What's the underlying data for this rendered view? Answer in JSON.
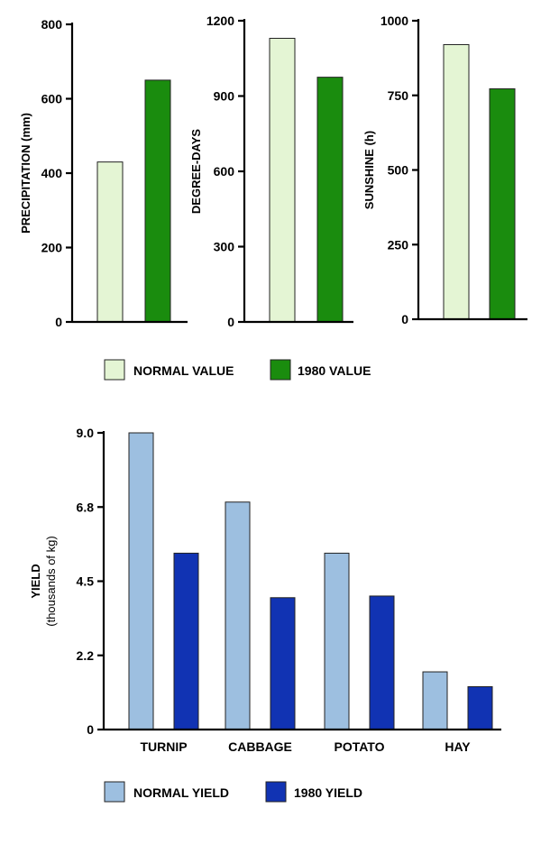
{
  "chart_data": [
    {
      "type": "bar",
      "title": "",
      "ylabel": "PRECIPITATION (mm)",
      "ylim": [
        0,
        800
      ],
      "yticks": [
        "0",
        "200",
        "400",
        "600",
        "800"
      ],
      "series": [
        {
          "name": "NORMAL VALUE",
          "values": [
            430
          ]
        },
        {
          "name": "1980 VALUE",
          "values": [
            650
          ]
        }
      ]
    },
    {
      "type": "bar",
      "title": "",
      "ylabel": "DEGREE-DAYS",
      "ylim": [
        0,
        1200
      ],
      "yticks": [
        "0",
        "300",
        "600",
        "900",
        "1200"
      ],
      "series": [
        {
          "name": "NORMAL VALUE",
          "values": [
            1130
          ]
        },
        {
          "name": "1980 VALUE",
          "values": [
            975
          ]
        }
      ]
    },
    {
      "type": "bar",
      "title": "",
      "ylabel": "SUNSHINE (h)",
      "ylim": [
        0,
        1000
      ],
      "yticks": [
        "0",
        "250",
        "500",
        "750",
        "1000"
      ],
      "series": [
        {
          "name": "NORMAL VALUE",
          "values": [
            920
          ]
        },
        {
          "name": "1980 VALUE",
          "values": [
            772
          ]
        }
      ]
    },
    {
      "type": "bar",
      "title": "",
      "ylabel": "YIELD",
      "ylabel_sub": "(thousands of kg)",
      "ylim": [
        0,
        9.0
      ],
      "yticks": [
        "0",
        "2.2",
        "4.5",
        "6.8",
        "9.0"
      ],
      "categories": [
        "TURNIP",
        "CABBAGE",
        "POTATO",
        "HAY"
      ],
      "series": [
        {
          "name": "NORMAL YIELD",
          "values": [
            9.0,
            6.9,
            5.35,
            1.75
          ]
        },
        {
          "name": "1980 YIELD",
          "values": [
            5.35,
            4.0,
            4.05,
            1.3
          ]
        }
      ]
    }
  ],
  "legends": {
    "weather": {
      "normal": "NORMAL VALUE",
      "current": "1980 VALUE"
    },
    "yield": {
      "normal": "NORMAL YIELD",
      "current": "1980 YIELD"
    }
  },
  "colors": {
    "normal_value": "#e4f5d4",
    "value_1980": "#1a8c0e",
    "normal_yield": "#9dbfe0",
    "yield_1980": "#1133b3"
  }
}
